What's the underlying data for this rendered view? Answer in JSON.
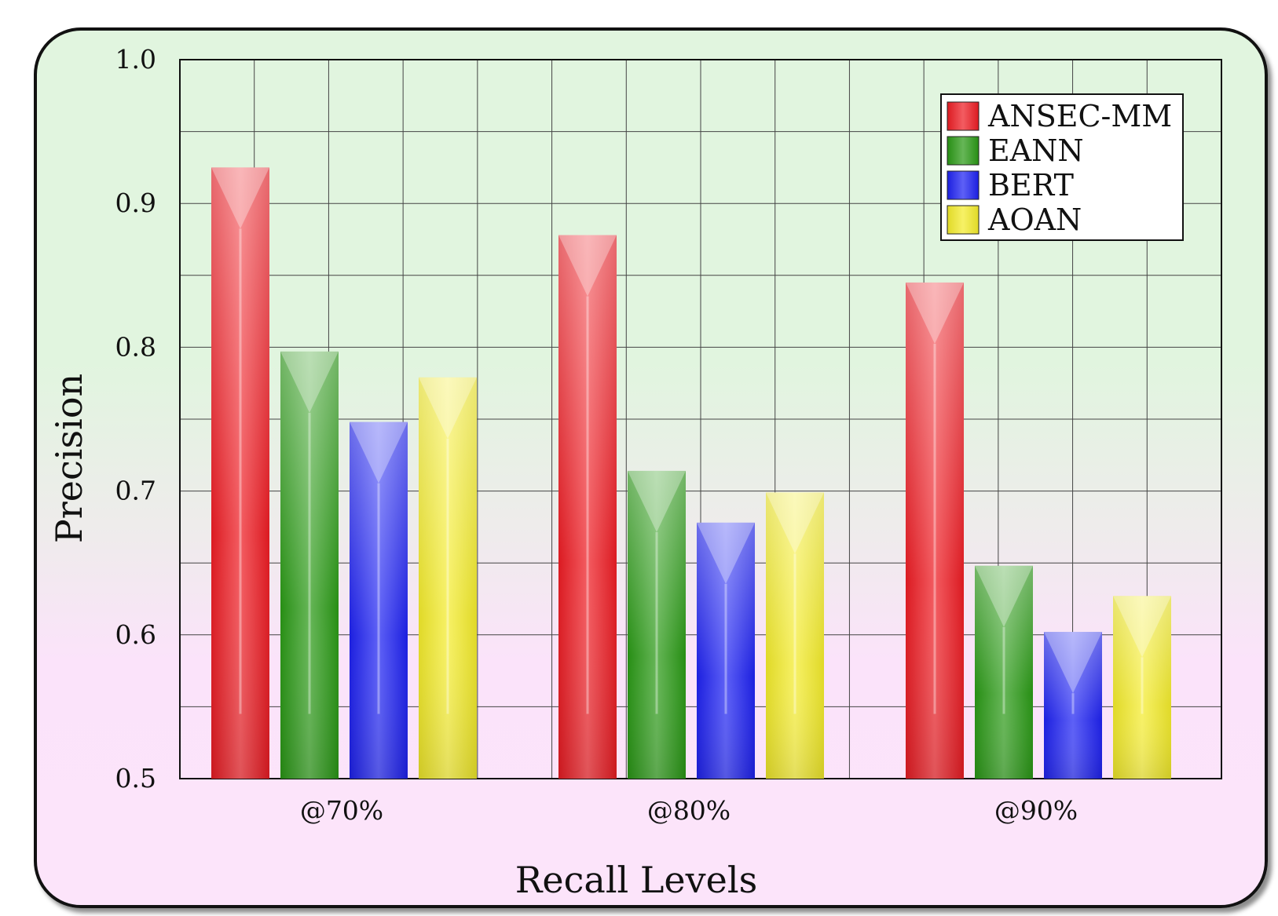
{
  "chart_data": {
    "type": "bar",
    "title": "",
    "xlabel": "Recall Levels",
    "ylabel": "Precision",
    "categories": [
      "@70%",
      "@80%",
      "@90%"
    ],
    "ylim": [
      0.5,
      1.0
    ],
    "yticks": [
      "0.5",
      "0.6",
      "0.7",
      "0.8",
      "0.9",
      "1.0"
    ],
    "grid": true,
    "legend_position": "top-right",
    "series": [
      {
        "name": "ANSEC-MM",
        "color": "#ee1c24",
        "values": [
          0.925,
          0.878,
          0.845
        ]
      },
      {
        "name": "EANN",
        "color": "#2a9a16",
        "values": [
          0.797,
          0.714,
          0.648
        ]
      },
      {
        "name": "BERT",
        "color": "#1e22f2",
        "values": [
          0.748,
          0.678,
          0.602
        ]
      },
      {
        "name": "AOAN",
        "color": "#f4ec2a",
        "values": [
          0.779,
          0.699,
          0.627
        ]
      }
    ]
  }
}
